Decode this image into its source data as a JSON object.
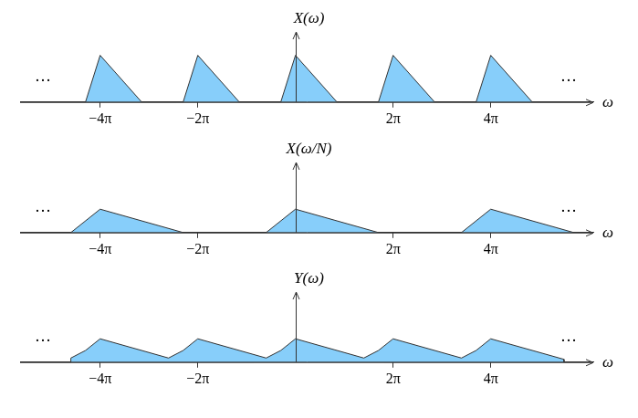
{
  "chart_data": [
    {
      "type": "line",
      "ylabel": "X(ω)",
      "xlabel": "ω",
      "annotations": [
        "…",
        "…"
      ],
      "x": [
        -4.3,
        -4,
        -3.15,
        -2.3,
        -2,
        -1.15,
        -0.3,
        0,
        0.85,
        1.7,
        2,
        2.85,
        3.7,
        4,
        4.85
      ],
      "values": [
        0,
        1,
        0,
        0,
        1,
        0,
        0,
        1,
        0,
        0,
        1,
        0,
        0,
        1,
        0
      ],
      "color": "#87cefa",
      "xlim": [
        -5.64,
        6.1
      ],
      "xticks": [
        {
          "value": -4,
          "label": "−4π"
        },
        {
          "value": -2,
          "label": "−2π"
        },
        {
          "value": 2,
          "label": "2π"
        },
        {
          "value": 4,
          "label": "4π"
        }
      ],
      "ylim": [
        0,
        1.5
      ],
      "grid": false,
      "tick_labels": "x"
    },
    {
      "type": "line",
      "ylabel": "X(ω/N)",
      "xlabel": "ω",
      "annotations": [
        "…",
        "…"
      ],
      "x": [
        -4.6,
        -4,
        -2.3,
        -0.6,
        0,
        1.7,
        3.4,
        4,
        5.7
      ],
      "values": [
        0,
        0.5,
        0,
        0,
        0.5,
        0,
        0,
        0.5,
        0
      ],
      "color": "#87cefa",
      "xlim": [
        -5.64,
        6.1
      ],
      "xticks": [
        {
          "value": -4,
          "label": "−4π"
        },
        {
          "value": -2,
          "label": "−2π"
        },
        {
          "value": 2,
          "label": "2π"
        },
        {
          "value": 4,
          "label": "4π"
        }
      ],
      "ylim": [
        0,
        1.5
      ],
      "grid": false,
      "tick_labels": "x"
    },
    {
      "type": "line",
      "ylabel": "Y(ω)",
      "xlabel": "ω",
      "annotations": [
        "…",
        "…"
      ],
      "x": [
        -4.6,
        -4.6,
        -4.3,
        -4,
        -2.6,
        -2.3,
        -2,
        -0.6,
        -0.3,
        0,
        1.4,
        1.7,
        2,
        3.4,
        3.7,
        4,
        5.5,
        5.5
      ],
      "values": [
        0,
        0.088,
        0.25,
        0.5,
        0.088,
        0.25,
        0.5,
        0.088,
        0.25,
        0.5,
        0.088,
        0.25,
        0.5,
        0.088,
        0.25,
        0.5,
        0.06,
        0
      ],
      "color": "#87cefa",
      "xlim": [
        -5.64,
        6.1
      ],
      "xticks": [
        {
          "value": -4,
          "label": "−4π"
        },
        {
          "value": -2,
          "label": "−2π"
        },
        {
          "value": 2,
          "label": "2π"
        },
        {
          "value": 4,
          "label": "4π"
        }
      ],
      "ylim": [
        0,
        1.5
      ],
      "grid": false,
      "tick_labels": "x"
    }
  ]
}
